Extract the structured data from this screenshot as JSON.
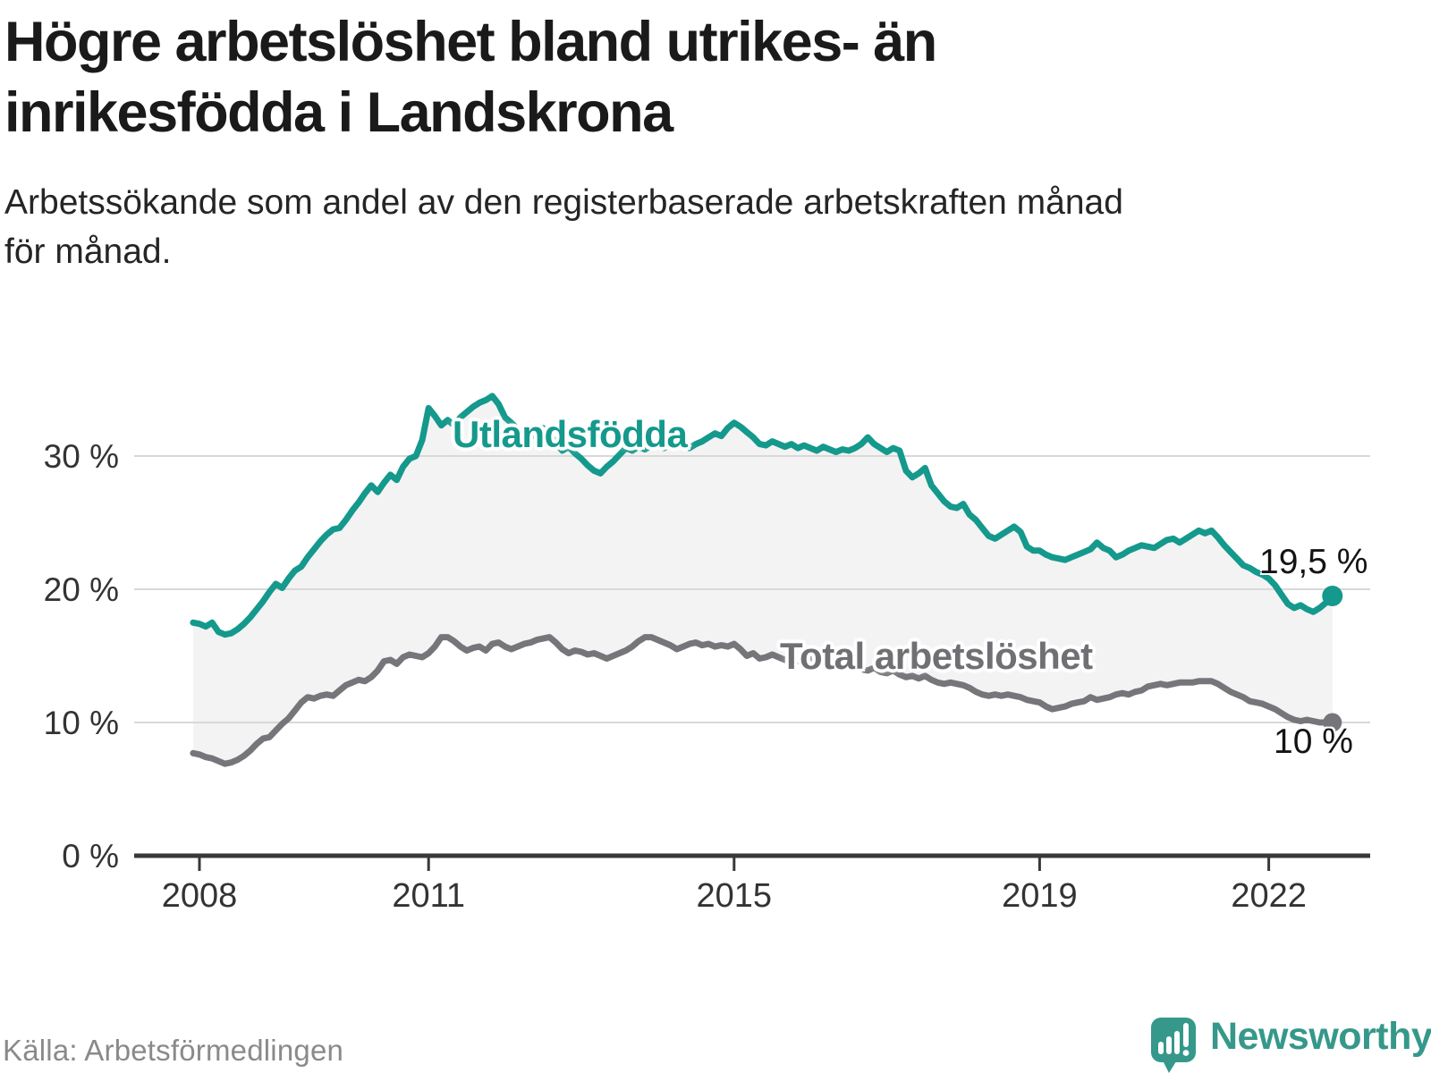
{
  "header": {
    "title": "Högre arbetslöshet bland utrikes- än inrikesfödda i Landskrona",
    "title_lines": [
      "Högre arbetslöshet bland utrikes- än",
      "inrikesfödda i Landskrona"
    ],
    "subtitle": "Arbetssökande som andel av den registerbaserade arbetskraften månad för månad.",
    "subtitle_lines": [
      "Arbetssökande som andel av den registerbaserade arbetskraften månad",
      "för månad."
    ]
  },
  "chart_data": {
    "type": "line",
    "unit": "percent",
    "x_start": "2007-12",
    "x_end": "2022-11",
    "x_step_months": 1,
    "ylim": [
      0,
      36.5
    ],
    "grid": "horizontal",
    "band_fill_between_series": true,
    "colors": {
      "band": "#f3f3f4",
      "gridline": "#d8d8d9",
      "axis": "#38383a",
      "tick_label": "#333333"
    },
    "y_ticks": [
      {
        "label": "0 %",
        "value": 0
      },
      {
        "label": "10 %",
        "value": 10
      },
      {
        "label": "20 %",
        "value": 20
      },
      {
        "label": "30 %",
        "value": 30
      }
    ],
    "x_ticks": [
      {
        "label": "2008",
        "year": 2008
      },
      {
        "label": "2011",
        "year": 2011
      },
      {
        "label": "2015",
        "year": 2015
      },
      {
        "label": "2019",
        "year": 2019
      },
      {
        "label": "2022",
        "year": 2022
      }
    ],
    "series": [
      {
        "name": "Utlandsfödda",
        "color": "#14998c",
        "end_label": "19,5 %",
        "end_value": 19.5,
        "values": [
          17.5,
          17.4,
          17.2,
          17.5,
          16.8,
          16.6,
          16.7,
          17.0,
          17.4,
          17.9,
          18.5,
          19.1,
          19.8,
          20.4,
          20.1,
          20.8,
          21.4,
          21.7,
          22.4,
          23.0,
          23.6,
          24.1,
          24.5,
          24.6,
          25.2,
          25.9,
          26.5,
          27.2,
          27.8,
          27.3,
          28.0,
          28.6,
          28.2,
          29.2,
          29.8,
          30.0,
          31.2,
          33.6,
          33.0,
          32.3,
          32.7,
          32.3,
          32.9,
          33.3,
          33.7,
          34.0,
          34.2,
          34.5,
          33.9,
          32.9,
          32.5,
          32.0,
          31.6,
          31.4,
          31.7,
          32.1,
          31.6,
          31.0,
          30.4,
          30.7,
          30.2,
          29.8,
          29.3,
          28.9,
          28.7,
          29.2,
          29.6,
          30.1,
          30.6,
          30.4,
          30.7,
          30.5,
          30.8,
          30.9,
          30.6,
          30.9,
          31.2,
          30.8,
          30.6,
          30.9,
          31.1,
          31.4,
          31.7,
          31.5,
          32.1,
          32.5,
          32.2,
          31.8,
          31.4,
          30.9,
          30.8,
          31.1,
          30.9,
          30.7,
          30.9,
          30.6,
          30.8,
          30.6,
          30.4,
          30.7,
          30.5,
          30.3,
          30.5,
          30.4,
          30.6,
          30.9,
          31.4,
          30.9,
          30.6,
          30.3,
          30.6,
          30.4,
          28.9,
          28.4,
          28.7,
          29.1,
          27.8,
          27.2,
          26.6,
          26.2,
          26.1,
          26.4,
          25.6,
          25.2,
          24.6,
          24.0,
          23.8,
          24.1,
          24.4,
          24.7,
          24.3,
          23.2,
          22.9,
          22.9,
          22.6,
          22.4,
          22.3,
          22.2,
          22.4,
          22.6,
          22.8,
          23.0,
          23.5,
          23.1,
          22.9,
          22.4,
          22.6,
          22.9,
          23.1,
          23.3,
          23.2,
          23.1,
          23.4,
          23.7,
          23.8,
          23.5,
          23.8,
          24.1,
          24.4,
          24.2,
          24.4,
          23.9,
          23.3,
          22.8,
          22.3,
          21.8,
          21.6,
          21.3,
          21.1,
          20.8,
          20.3,
          19.6,
          18.9,
          18.6,
          18.8,
          18.5,
          18.3,
          18.6,
          19.0,
          19.5
        ]
      },
      {
        "name": "Total arbetslöshet",
        "color": "#76767a",
        "end_label": "10 %",
        "end_value": 10.0,
        "values": [
          7.7,
          7.6,
          7.4,
          7.3,
          7.1,
          6.9,
          7.0,
          7.2,
          7.5,
          7.9,
          8.4,
          8.8,
          8.9,
          9.4,
          9.9,
          10.3,
          10.9,
          11.5,
          11.9,
          11.8,
          12.0,
          12.1,
          12.0,
          12.4,
          12.8,
          13.0,
          13.2,
          13.1,
          13.4,
          13.9,
          14.6,
          14.7,
          14.4,
          14.9,
          15.1,
          15.0,
          14.9,
          15.2,
          15.7,
          16.4,
          16.4,
          16.1,
          15.7,
          15.4,
          15.6,
          15.7,
          15.4,
          15.9,
          16.0,
          15.7,
          15.5,
          15.7,
          15.9,
          16.0,
          16.2,
          16.3,
          16.4,
          16.0,
          15.5,
          15.2,
          15.4,
          15.3,
          15.1,
          15.2,
          15.0,
          14.8,
          15.0,
          15.2,
          15.4,
          15.7,
          16.1,
          16.4,
          16.4,
          16.2,
          16.0,
          15.8,
          15.5,
          15.7,
          15.9,
          16.0,
          15.8,
          15.9,
          15.7,
          15.8,
          15.7,
          15.9,
          15.5,
          15.0,
          15.2,
          14.8,
          14.9,
          15.1,
          14.9,
          14.7,
          14.8,
          14.6,
          14.7,
          14.9,
          14.6,
          14.4,
          14.6,
          14.4,
          14.2,
          14.5,
          14.3,
          14.0,
          13.9,
          14.1,
          13.8,
          13.7,
          13.9,
          13.6,
          13.4,
          13.5,
          13.3,
          13.5,
          13.2,
          13.0,
          12.9,
          13.0,
          12.9,
          12.8,
          12.6,
          12.3,
          12.1,
          12.0,
          12.1,
          12.0,
          12.1,
          12.0,
          11.9,
          11.7,
          11.6,
          11.5,
          11.2,
          11.0,
          11.1,
          11.2,
          11.4,
          11.5,
          11.6,
          11.9,
          11.7,
          11.8,
          11.9,
          12.1,
          12.2,
          12.1,
          12.3,
          12.4,
          12.7,
          12.8,
          12.9,
          12.8,
          12.9,
          13.0,
          13.0,
          13.0,
          13.1,
          13.1,
          13.1,
          12.9,
          12.6,
          12.3,
          12.1,
          11.9,
          11.6,
          11.5,
          11.4,
          11.2,
          11.0,
          10.7,
          10.4,
          10.2,
          10.1,
          10.2,
          10.1,
          10.0,
          10.0,
          10.0
        ]
      }
    ]
  },
  "footer": {
    "source": "Källa: Arbetsförmedlingen",
    "brand": "Newsworthy",
    "brand_color": "#35988a"
  }
}
